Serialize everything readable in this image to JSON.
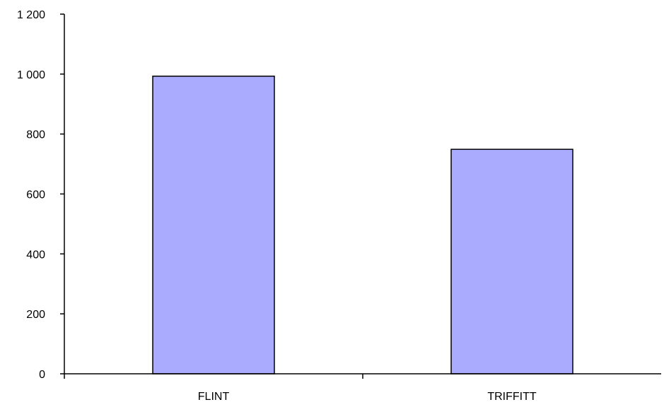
{
  "chart_data": {
    "type": "bar",
    "categories": [
      "FLINT",
      "TRIFFITT"
    ],
    "values": [
      993,
      749
    ],
    "ylim": [
      0,
      1200
    ],
    "y_ticks": [
      0,
      200,
      400,
      600,
      800,
      1000,
      1200
    ],
    "y_tick_labels": [
      "0",
      "200",
      "400",
      "600",
      "800",
      "1 000",
      "1 200"
    ],
    "title": "",
    "xlabel": "",
    "ylabel": "",
    "grid": false,
    "legend": "none",
    "bar_color": "#aaaaff",
    "bar_edge_color": "#000000",
    "axis_color": "#000000"
  }
}
